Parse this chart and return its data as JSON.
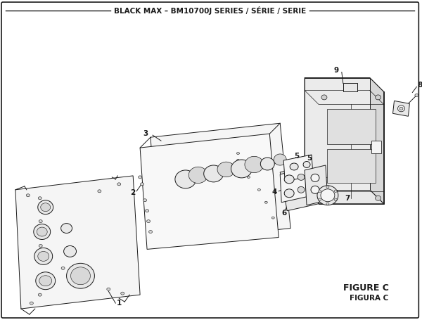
{
  "title": "BLACK MAX – BM10700J SERIES / SÉRIE / SERIE",
  "figure_label": "FIGURE C",
  "figura_label": "FIGURA C",
  "bg_color": "#ffffff",
  "line_color": "#1a1a1a",
  "fill_light": "#f5f5f5",
  "fill_mid": "#e8e8e8",
  "fill_dark": "#d8d8d8",
  "title_fontsize": 7.5,
  "label_fontsize": 7.5
}
